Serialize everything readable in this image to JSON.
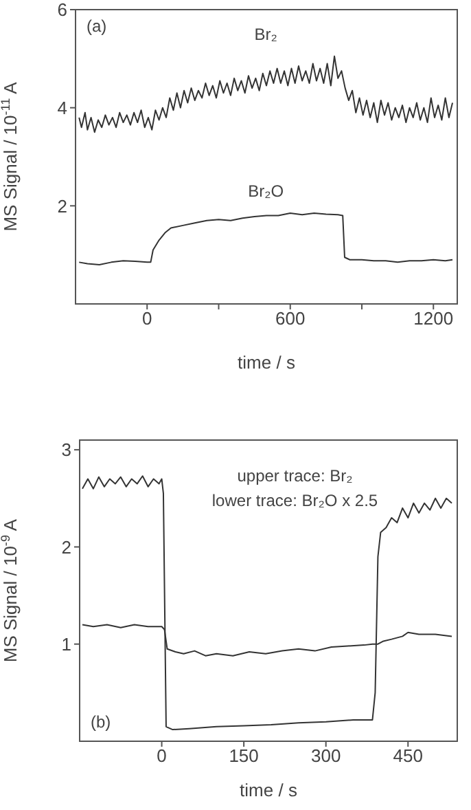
{
  "chart_data": [
    {
      "type": "line",
      "xlabel": "time / s",
      "ylabel": "MS Signal / 10$^{-11}$ A",
      "annotations": [
        "(a)"
      ],
      "xlim": [
        -300,
        1300
      ],
      "xticks": [
        0,
        {
          "value": 300,
          "label": null
        },
        600,
        {
          "value": 900,
          "label": null
        },
        1200
      ],
      "ylim": [
        0,
        6
      ],
      "yticks": [
        2,
        4,
        6
      ],
      "marker": "none",
      "line_style": "solid",
      "series": [
        {
          "name": "Br₂",
          "color": "#333333",
          "x": [
            -285,
            -275,
            -260,
            -250,
            -235,
            -220,
            -205,
            -190,
            -175,
            -160,
            -145,
            -130,
            -115,
            -100,
            -85,
            -70,
            -55,
            -40,
            -25,
            -10,
            5,
            20,
            35,
            50,
            65,
            80,
            95,
            110,
            125,
            140,
            155,
            170,
            185,
            200,
            215,
            230,
            245,
            260,
            275,
            290,
            305,
            320,
            335,
            350,
            365,
            380,
            395,
            410,
            425,
            440,
            455,
            470,
            485,
            500,
            515,
            530,
            545,
            560,
            575,
            590,
            605,
            620,
            635,
            650,
            665,
            680,
            695,
            710,
            725,
            740,
            755,
            770,
            785,
            800,
            815,
            830,
            845,
            860,
            875,
            890,
            905,
            920,
            935,
            950,
            965,
            980,
            995,
            1010,
            1025,
            1040,
            1055,
            1070,
            1085,
            1100,
            1115,
            1130,
            1145,
            1160,
            1175,
            1190,
            1205,
            1220,
            1235,
            1250,
            1265,
            1280
          ],
          "values": [
            3.8,
            3.6,
            3.9,
            3.55,
            3.8,
            3.5,
            3.75,
            3.6,
            3.85,
            3.65,
            3.8,
            3.6,
            3.9,
            3.7,
            3.85,
            3.65,
            3.9,
            3.7,
            3.95,
            3.6,
            3.8,
            3.55,
            3.95,
            3.75,
            4.0,
            3.8,
            4.2,
            3.95,
            4.3,
            4.0,
            4.35,
            4.1,
            4.4,
            4.15,
            4.35,
            4.2,
            4.5,
            4.25,
            4.45,
            4.2,
            4.55,
            4.3,
            4.5,
            4.25,
            4.6,
            4.35,
            4.55,
            4.3,
            4.65,
            4.4,
            4.6,
            4.35,
            4.7,
            4.45,
            4.75,
            4.5,
            4.8,
            4.5,
            4.75,
            4.45,
            4.8,
            4.5,
            4.85,
            4.55,
            4.75,
            4.5,
            4.9,
            4.55,
            4.8,
            4.5,
            4.9,
            4.45,
            5.05,
            4.6,
            4.75,
            4.4,
            4.15,
            4.35,
            3.9,
            4.2,
            3.85,
            4.15,
            3.8,
            4.1,
            3.7,
            4.15,
            3.85,
            4.1,
            3.75,
            4.0,
            3.8,
            4.05,
            3.7,
            4.0,
            3.8,
            4.1,
            3.75,
            4.0,
            3.7,
            4.2,
            3.8,
            4.05,
            3.75,
            4.2,
            3.8,
            4.1
          ]
        },
        {
          "name": "Br₂O",
          "color": "#333333",
          "x": [
            -285,
            -250,
            -200,
            -150,
            -100,
            -50,
            0,
            15,
            25,
            50,
            75,
            100,
            150,
            200,
            250,
            300,
            350,
            400,
            450,
            500,
            550,
            600,
            650,
            700,
            750,
            800,
            820,
            828,
            850,
            900,
            950,
            1000,
            1050,
            1100,
            1150,
            1200,
            1250,
            1280
          ],
          "values": [
            0.85,
            0.82,
            0.8,
            0.85,
            0.88,
            0.87,
            0.85,
            0.85,
            1.1,
            1.3,
            1.45,
            1.55,
            1.6,
            1.65,
            1.7,
            1.72,
            1.7,
            1.75,
            1.78,
            1.8,
            1.8,
            1.85,
            1.82,
            1.85,
            1.83,
            1.82,
            1.8,
            0.95,
            0.9,
            0.9,
            0.88,
            0.88,
            0.85,
            0.88,
            0.88,
            0.9,
            0.88,
            0.9
          ]
        }
      ]
    },
    {
      "type": "line",
      "xlabel": "time / s",
      "ylabel": "MS Signal / 10$^{-9}$ A",
      "annotations": [
        "upper trace: Br₂",
        "lower trace: Br₂O x 2.5",
        "(b)"
      ],
      "xlim": [
        -150,
        540
      ],
      "xticks": [
        0,
        150,
        300,
        450
      ],
      "ylim": [
        0,
        3.1
      ],
      "yticks": [
        1,
        2,
        3
      ],
      "marker": "none",
      "line_style": "solid",
      "series": [
        {
          "color": "#333333",
          "x": [
            -145,
            -135,
            -125,
            -115,
            -105,
            -95,
            -85,
            -75,
            -65,
            -55,
            -45,
            -35,
            -25,
            -15,
            -5,
            0,
            3,
            8,
            20,
            50,
            100,
            150,
            200,
            250,
            300,
            350,
            385,
            390,
            395,
            400,
            410,
            420,
            430,
            440,
            450,
            460,
            470,
            480,
            490,
            500,
            510,
            520,
            530
          ],
          "values": [
            2.6,
            2.7,
            2.6,
            2.72,
            2.62,
            2.7,
            2.65,
            2.72,
            2.62,
            2.7,
            2.65,
            2.73,
            2.62,
            2.7,
            2.65,
            2.7,
            2.55,
            0.15,
            0.12,
            0.13,
            0.15,
            0.16,
            0.17,
            0.19,
            0.2,
            0.22,
            0.22,
            0.5,
            1.9,
            2.15,
            2.2,
            2.3,
            2.25,
            2.4,
            2.3,
            2.45,
            2.35,
            2.45,
            2.38,
            2.5,
            2.4,
            2.5,
            2.45
          ]
        },
        {
          "color": "#333333",
          "x": [
            -145,
            -125,
            -100,
            -75,
            -50,
            -25,
            0,
            5,
            10,
            25,
            40,
            60,
            80,
            100,
            130,
            160,
            190,
            220,
            250,
            280,
            310,
            340,
            370,
            385,
            395,
            405,
            420,
            440,
            450,
            470,
            500,
            530
          ],
          "values": [
            1.2,
            1.18,
            1.2,
            1.17,
            1.2,
            1.18,
            1.18,
            1.15,
            0.95,
            0.92,
            0.9,
            0.93,
            0.88,
            0.9,
            0.88,
            0.92,
            0.9,
            0.93,
            0.95,
            0.93,
            0.97,
            0.98,
            0.99,
            1.0,
            1.0,
            1.03,
            1.05,
            1.08,
            1.12,
            1.1,
            1.1,
            1.08
          ]
        }
      ]
    }
  ]
}
